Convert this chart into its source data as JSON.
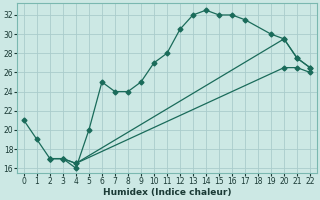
{
  "xlabel": "Humidex (Indice chaleur)",
  "bg_color": "#cce8e4",
  "grid_color": "#aacccc",
  "line_color": "#1a6b5a",
  "xlim": [
    -0.5,
    22.5
  ],
  "ylim": [
    15.5,
    33.2
  ],
  "xticks": [
    0,
    1,
    2,
    3,
    4,
    5,
    6,
    7,
    8,
    9,
    10,
    11,
    12,
    13,
    14,
    15,
    16,
    17,
    18,
    19,
    20,
    21,
    22
  ],
  "yticks": [
    16,
    18,
    20,
    22,
    24,
    26,
    28,
    30,
    32
  ],
  "line1_x": [
    0,
    1,
    2,
    3,
    4,
    5,
    6,
    7,
    8,
    9,
    10,
    11,
    12,
    13,
    14,
    15,
    16,
    17,
    19,
    20,
    21,
    22
  ],
  "line1_y": [
    21,
    19,
    17,
    17,
    16,
    20,
    25,
    24,
    24,
    25,
    27,
    28,
    30.5,
    32,
    32.5,
    32,
    32,
    31.5,
    30,
    29.5,
    27.5,
    26.5
  ],
  "line2_x": [
    2,
    3,
    4,
    20,
    21,
    22
  ],
  "line2_y": [
    17,
    17,
    16.5,
    26.5,
    26.5,
    26
  ],
  "line3_x": [
    2,
    3,
    4,
    20,
    21,
    22
  ],
  "line3_y": [
    17,
    17,
    16.5,
    29.5,
    27.5,
    26.5
  ],
  "marker_size": 2.5,
  "line_width": 0.9,
  "tick_fontsize": 5.5,
  "xlabel_fontsize": 6.5
}
